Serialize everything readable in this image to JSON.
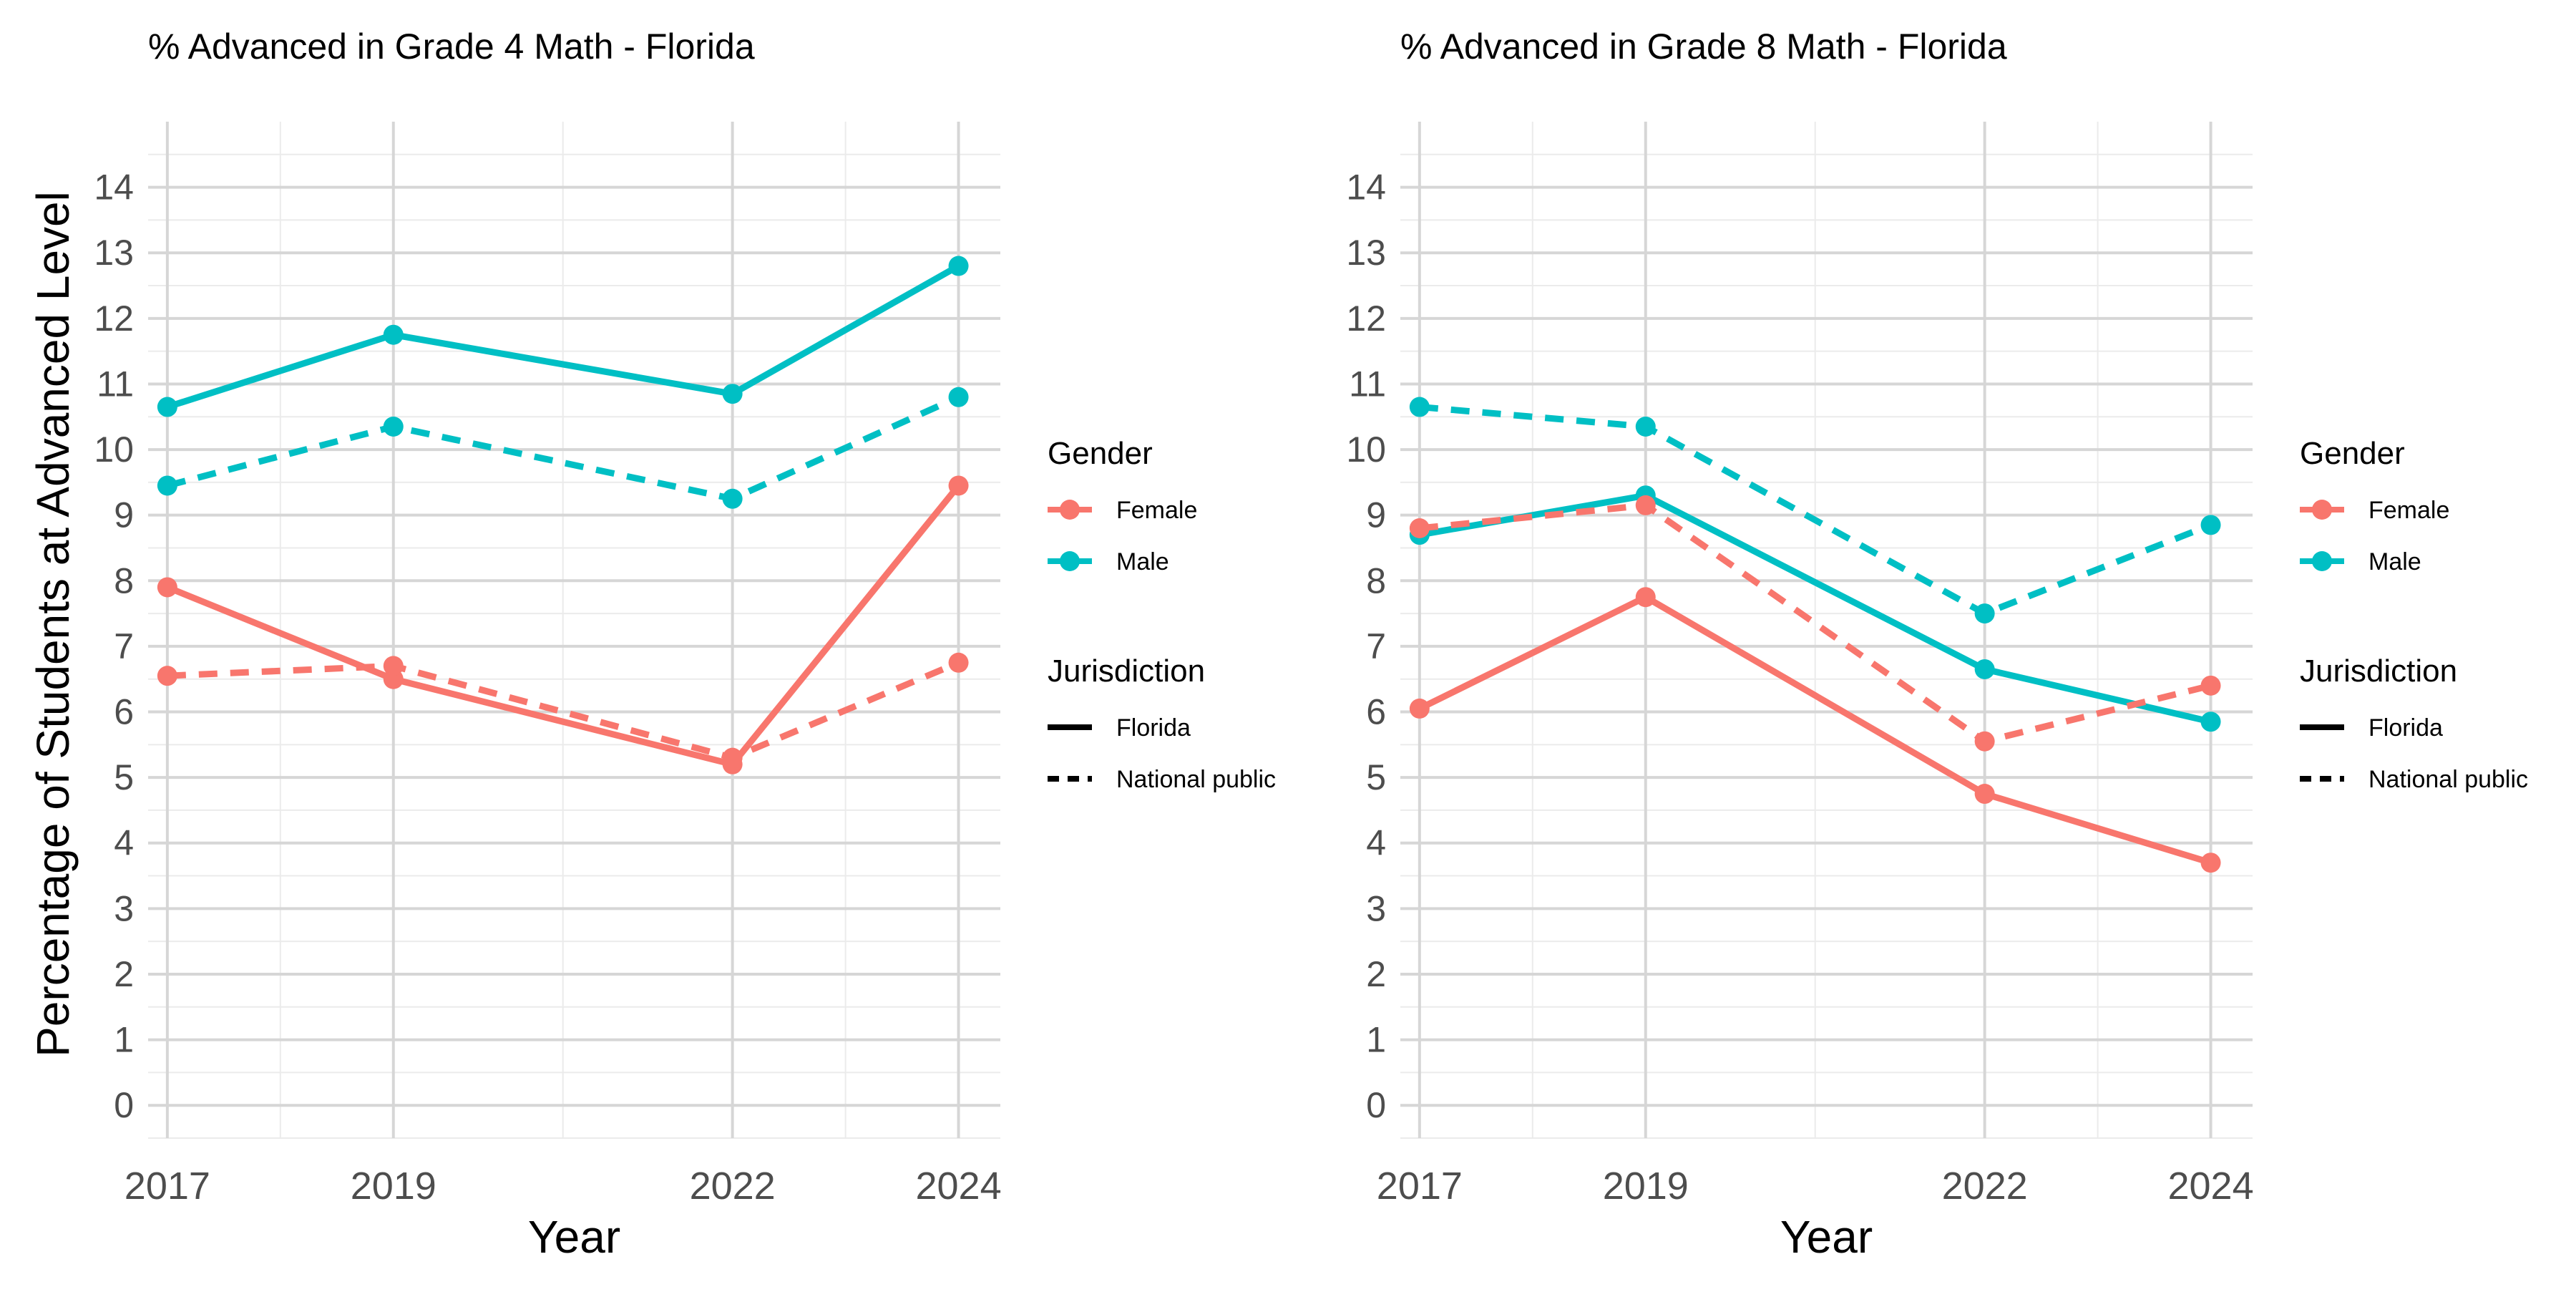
{
  "shared": {
    "ylabel": "Percentage of Students at Advanced Level",
    "xlabel": "Year"
  },
  "legend": {
    "gender_title": "Gender",
    "gender_items": [
      {
        "label": "Female",
        "color": "#F8766D"
      },
      {
        "label": "Male",
        "color": "#00BFC4"
      }
    ],
    "jurisdiction_title": "Jurisdiction",
    "jurisdiction_items": [
      {
        "label": "Florida",
        "linetype": "solid"
      },
      {
        "label": "National public",
        "linetype": "dashed"
      }
    ]
  },
  "chart_data": [
    {
      "type": "line",
      "title": "% Advanced in Grade 4 Math - Florida",
      "xlabel": "Year",
      "ylabel": "Percentage of Students at Advanced Level",
      "x": [
        2017,
        2019,
        2022,
        2024
      ],
      "xlim": [
        2016.83,
        2024.37
      ],
      "ylim": [
        -0.5,
        15
      ],
      "yticks": [
        0,
        1,
        2,
        3,
        4,
        5,
        6,
        7,
        8,
        9,
        10,
        11,
        12,
        13,
        14
      ],
      "grid": true,
      "legend_position": "right",
      "series": [
        {
          "name": "Male Florida",
          "gender": "Male",
          "jurisdiction": "Florida",
          "color": "#00BFC4",
          "linetype": "solid",
          "values": [
            10.65,
            11.75,
            10.85,
            12.8
          ]
        },
        {
          "name": "Male National public",
          "gender": "Male",
          "jurisdiction": "National public",
          "color": "#00BFC4",
          "linetype": "dashed",
          "values": [
            9.45,
            10.35,
            9.25,
            10.8
          ]
        },
        {
          "name": "Female Florida",
          "gender": "Female",
          "jurisdiction": "Florida",
          "color": "#F8766D",
          "linetype": "solid",
          "values": [
            7.9,
            6.5,
            5.2,
            9.45
          ]
        },
        {
          "name": "Female National public",
          "gender": "Female",
          "jurisdiction": "National public",
          "color": "#F8766D",
          "linetype": "dashed",
          "values": [
            6.55,
            6.7,
            5.3,
            6.75
          ]
        }
      ]
    },
    {
      "type": "line",
      "title": "% Advanced in Grade 8 Math - Florida",
      "xlabel": "Year",
      "ylabel": "",
      "x": [
        2017,
        2019,
        2022,
        2024
      ],
      "xlim": [
        2016.83,
        2024.37
      ],
      "ylim": [
        -0.5,
        15
      ],
      "yticks": [
        0,
        1,
        2,
        3,
        4,
        5,
        6,
        7,
        8,
        9,
        10,
        11,
        12,
        13,
        14
      ],
      "grid": true,
      "legend_position": "right",
      "series": [
        {
          "name": "Male National public",
          "gender": "Male",
          "jurisdiction": "National public",
          "color": "#00BFC4",
          "linetype": "dashed",
          "values": [
            10.65,
            10.35,
            7.5,
            8.85
          ]
        },
        {
          "name": "Male Florida",
          "gender": "Male",
          "jurisdiction": "Florida",
          "color": "#00BFC4",
          "linetype": "solid",
          "values": [
            8.7,
            9.3,
            6.65,
            5.85
          ]
        },
        {
          "name": "Female National public",
          "gender": "Female",
          "jurisdiction": "National public",
          "color": "#F8766D",
          "linetype": "dashed",
          "values": [
            8.8,
            9.15,
            5.55,
            6.4
          ]
        },
        {
          "name": "Female Florida",
          "gender": "Female",
          "jurisdiction": "Florida",
          "color": "#F8766D",
          "linetype": "solid",
          "values": [
            6.05,
            7.75,
            4.75,
            3.7
          ]
        }
      ]
    }
  ]
}
